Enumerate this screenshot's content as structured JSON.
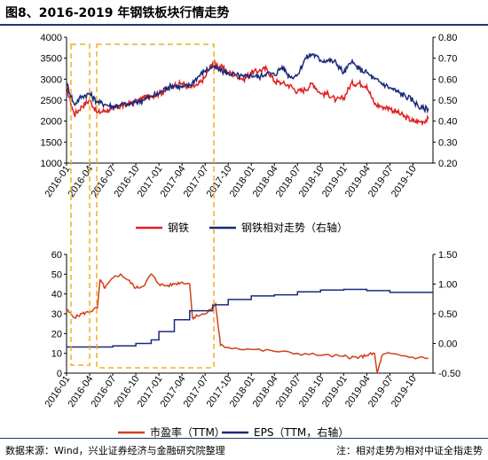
{
  "title": "图8、2016-2019 年钢铁板块行情走势",
  "footer": {
    "source": "数据来源：Wind，兴业证券经济与金融研究院整理",
    "note": "注：相对走势为相对中证全指走势"
  },
  "colors": {
    "red": "#e02020",
    "navy": "#1a2a7a",
    "orange_red": "#d0401a",
    "highlight": "#f0b020",
    "rule": "#1f3a70"
  },
  "chart_data": [
    {
      "type": "line",
      "title": "",
      "x_ticks": [
        "2016-01",
        "2016-04",
        "2016-07",
        "2016-10",
        "2017-01",
        "2017-04",
        "2017-07",
        "2017-10",
        "2018-01",
        "2018-04",
        "2018-07",
        "2018-10",
        "2019-01",
        "2019-04",
        "2019-07",
        "2019-10"
      ],
      "y_left": {
        "min": 1000,
        "max": 4000,
        "ticks": [
          "1000",
          "1500",
          "2000",
          "2500",
          "3000",
          "3500",
          "4000"
        ]
      },
      "y_right": {
        "min": 0.2,
        "max": 0.8,
        "ticks": [
          "0.20",
          "0.30",
          "0.40",
          "0.50",
          "0.60",
          "0.70",
          "0.80"
        ]
      },
      "series": [
        {
          "name": "钢铁",
          "axis": "left",
          "color": "#e02020",
          "x": [
            "2016-01",
            "2016-02",
            "2016-03",
            "2016-04",
            "2016-05",
            "2016-06",
            "2016-07",
            "2016-08",
            "2016-09",
            "2016-10",
            "2016-11",
            "2016-12",
            "2017-01",
            "2017-02",
            "2017-03",
            "2017-04",
            "2017-05",
            "2017-06",
            "2017-07",
            "2017-08",
            "2017-09",
            "2017-10",
            "2017-11",
            "2017-12",
            "2018-01",
            "2018-02",
            "2018-03",
            "2018-04",
            "2018-05",
            "2018-06",
            "2018-07",
            "2018-08",
            "2018-09",
            "2018-10",
            "2018-11",
            "2018-12",
            "2019-01",
            "2019-02",
            "2019-03",
            "2019-04",
            "2019-05",
            "2019-06",
            "2019-07",
            "2019-08",
            "2019-09",
            "2019-10",
            "2019-11",
            "2019-12"
          ],
          "values": [
            2800,
            2150,
            2350,
            2500,
            2200,
            2250,
            2300,
            2350,
            2400,
            2450,
            2550,
            2600,
            2650,
            2750,
            2850,
            2900,
            2800,
            2850,
            3050,
            3400,
            3300,
            3150,
            3100,
            3000,
            3150,
            3200,
            3250,
            2950,
            2900,
            2850,
            2700,
            2750,
            2900,
            2650,
            2650,
            2500,
            2550,
            2900,
            2900,
            2850,
            2400,
            2350,
            2300,
            2200,
            2100,
            2000,
            1980,
            2050
          ]
        },
        {
          "name": "钢铁相对走势（右轴）",
          "axis": "right",
          "color": "#1a2a7a",
          "x": [
            "2016-01",
            "2016-02",
            "2016-03",
            "2016-04",
            "2016-05",
            "2016-06",
            "2016-07",
            "2016-08",
            "2016-09",
            "2016-10",
            "2016-11",
            "2016-12",
            "2017-01",
            "2017-02",
            "2017-03",
            "2017-04",
            "2017-05",
            "2017-06",
            "2017-07",
            "2017-08",
            "2017-09",
            "2017-10",
            "2017-11",
            "2017-12",
            "2018-01",
            "2018-02",
            "2018-03",
            "2018-04",
            "2018-05",
            "2018-06",
            "2018-07",
            "2018-08",
            "2018-09",
            "2018-10",
            "2018-11",
            "2018-12",
            "2019-01",
            "2019-02",
            "2019-03",
            "2019-04",
            "2019-05",
            "2019-06",
            "2019-07",
            "2019-08",
            "2019-09",
            "2019-10",
            "2019-11",
            "2019-12"
          ],
          "values": [
            0.58,
            0.48,
            0.52,
            0.53,
            0.49,
            0.48,
            0.47,
            0.48,
            0.48,
            0.49,
            0.5,
            0.52,
            0.53,
            0.56,
            0.57,
            0.56,
            0.57,
            0.61,
            0.64,
            0.66,
            0.64,
            0.63,
            0.62,
            0.61,
            0.62,
            0.61,
            0.63,
            0.62,
            0.66,
            0.61,
            0.62,
            0.7,
            0.72,
            0.69,
            0.69,
            0.68,
            0.63,
            0.68,
            0.65,
            0.63,
            0.6,
            0.58,
            0.56,
            0.54,
            0.52,
            0.5,
            0.46,
            0.46
          ]
        }
      ],
      "legend": {
        "position": "bottom"
      }
    },
    {
      "type": "line",
      "title": "",
      "x_ticks": [
        "2016-01",
        "2016-04",
        "2016-07",
        "2016-10",
        "2017-01",
        "2017-04",
        "2017-07",
        "2017-10",
        "2018-01",
        "2018-04",
        "2018-07",
        "2018-10",
        "2019-01",
        "2019-04",
        "2019-07",
        "2019-10"
      ],
      "y_left": {
        "min": 0,
        "max": 60,
        "ticks": [
          "0",
          "10",
          "20",
          "30",
          "40",
          "50",
          "60"
        ]
      },
      "y_right": {
        "min": -0.5,
        "max": 1.5,
        "ticks": [
          "-0.50",
          "0.00",
          "0.50",
          "1.00",
          "1.50"
        ]
      },
      "series": [
        {
          "name": "市盈率（TTM）",
          "axis": "left",
          "color": "#d0401a",
          "x": [
            "2016-01",
            "2016-02",
            "2016-03",
            "2016-04",
            "2016-05",
            "2016-05b",
            "2016-06",
            "2016-07",
            "2016-08",
            "2016-09",
            "2016-10",
            "2016-11",
            "2016-12",
            "2017-01",
            "2017-02",
            "2017-03",
            "2017-04",
            "2017-05",
            "2017-05b",
            "2017-06",
            "2017-07",
            "2017-08",
            "2017-08b",
            "2017-09",
            "2017-10",
            "2018-01",
            "2018-04",
            "2018-07",
            "2018-10",
            "2019-01",
            "2019-02",
            "2019-03",
            "2019-04",
            "2019-05",
            "2019-05b",
            "2019-06",
            "2019-07",
            "2019-10",
            "2019-12"
          ],
          "values": [
            32,
            28,
            30,
            31,
            33,
            47,
            43,
            48,
            50,
            47,
            43,
            44,
            50,
            45,
            44,
            45,
            46,
            45,
            28,
            29,
            30,
            33,
            35,
            14,
            13,
            12,
            11,
            10,
            9,
            8.5,
            8,
            8,
            9,
            10,
            0,
            9,
            10,
            8,
            7.5
          ]
        },
        {
          "name": "EPS（TTM，右轴）",
          "axis": "right",
          "color": "#1a2a7a",
          "x": [
            "2016-01",
            "2016-05",
            "2016-07",
            "2016-10",
            "2016-12",
            "2017-01",
            "2017-03",
            "2017-05",
            "2017-08",
            "2017-10",
            "2018-01",
            "2018-04",
            "2018-07",
            "2018-10",
            "2019-01",
            "2019-04",
            "2019-07",
            "2019-12"
          ],
          "values": [
            -0.06,
            -0.06,
            -0.04,
            0.0,
            0.06,
            0.2,
            0.4,
            0.55,
            0.65,
            0.74,
            0.8,
            0.82,
            0.87,
            0.9,
            0.91,
            0.89,
            0.86,
            0.86
          ]
        }
      ],
      "legend": {
        "position": "bottom"
      }
    }
  ]
}
